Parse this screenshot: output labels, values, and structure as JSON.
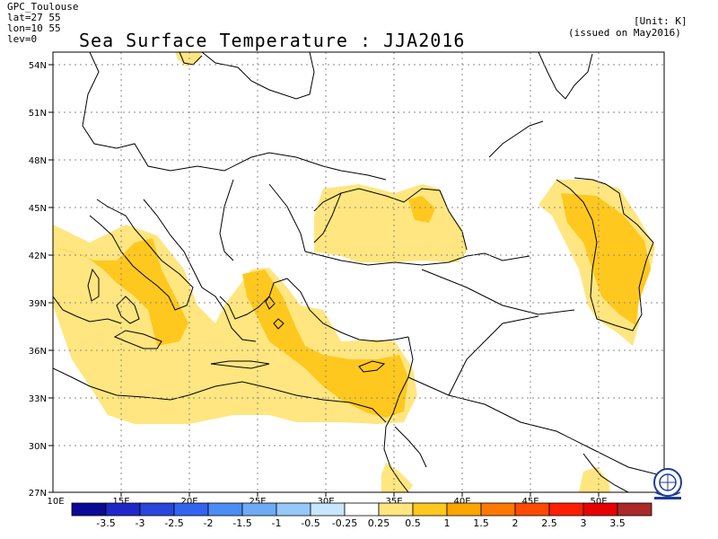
{
  "header": {
    "source": "GPC_Toulouse",
    "lat": "lat=27 55",
    "lon": "lon=10 55",
    "lev": "lev=0",
    "title": "Sea Surface Temperature : JJA2016",
    "unit": "[Unit: K]",
    "issued": "(issued on May2016)"
  },
  "map": {
    "lat_labels": [
      "54N",
      "51N",
      "48N",
      "45N",
      "42N",
      "39N",
      "36N",
      "33N",
      "30N",
      "27N"
    ],
    "lon_labels": [
      "10E",
      "15E",
      "20E",
      "25E",
      "30E",
      "35E",
      "40E",
      "45E",
      "50E"
    ],
    "colors": {
      "pale_yellow": "#ffe680",
      "deep_yellow": "#ffc81e",
      "coast": "#000000"
    }
  },
  "colorbar": {
    "colors": [
      "#0a0a96",
      "#1e28c8",
      "#2846dc",
      "#3264f0",
      "#4b8cf5",
      "#6eaaf5",
      "#96c8fa",
      "#c8e6ff",
      "#ffffff",
      "#ffe680",
      "#ffc81e",
      "#ffa500",
      "#ff7800",
      "#ff4b00",
      "#ff1e00",
      "#e60000",
      "#aa2828"
    ],
    "labels": [
      "-3.5",
      "-3",
      "-2.5",
      "-2",
      "-1.5",
      "-1",
      "-0.5",
      "-0.25",
      "0.25",
      "0.5",
      "1",
      "1.5",
      "2",
      "2.5",
      "3",
      "3.5"
    ]
  }
}
